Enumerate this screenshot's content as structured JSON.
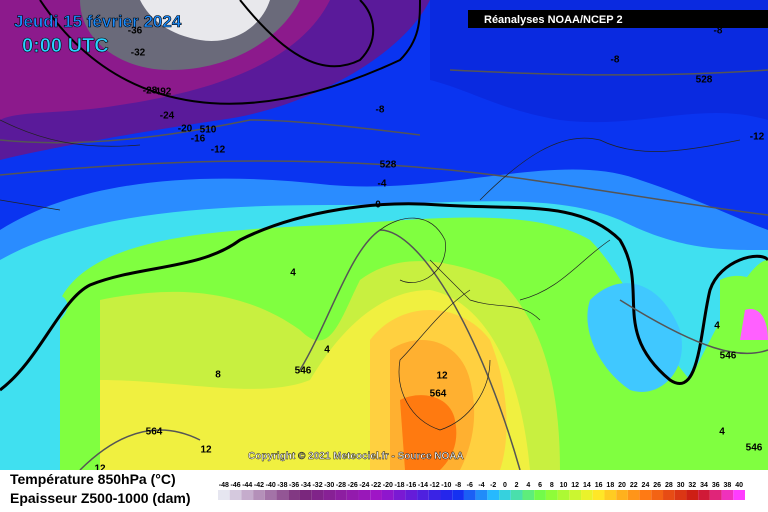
{
  "header": {
    "date": "Jeudi 15 février 2024",
    "time": "0:00 UTC",
    "source": "Réanalyses NOAA/NCEP 2"
  },
  "copyright": "Copyright © 2021 Meteociel.fr - Source NOAA",
  "legend": {
    "temperature": "Température 850hPa (°C)",
    "thickness": "Epaisseur Z500-1000 (dam)",
    "scale": [
      "-48",
      "-46",
      "-44",
      "-42",
      "-40",
      "-38",
      "-36",
      "-34",
      "-32",
      "-30",
      "-28",
      "-26",
      "-24",
      "-22",
      "-20",
      "-18",
      "-16",
      "-14",
      "-12",
      "-10",
      "-8",
      "-6",
      "-4",
      "-2",
      "0",
      "2",
      "4",
      "6",
      "8",
      "10",
      "12",
      "14",
      "16",
      "18",
      "20",
      "22",
      "24",
      "26",
      "28",
      "30",
      "32",
      "34",
      "36",
      "38",
      "40"
    ]
  },
  "contour_labels": [
    "-36",
    "-32",
    "-28",
    "492",
    "-24",
    "-20",
    "510",
    "-16",
    "-12",
    "-8",
    "-8",
    "-8",
    "528",
    "-12",
    "528",
    "-4",
    "0",
    "4",
    "4",
    "546",
    "8",
    "564",
    "12",
    "4",
    "546",
    "4",
    "546",
    "12",
    "564",
    "12"
  ]
}
